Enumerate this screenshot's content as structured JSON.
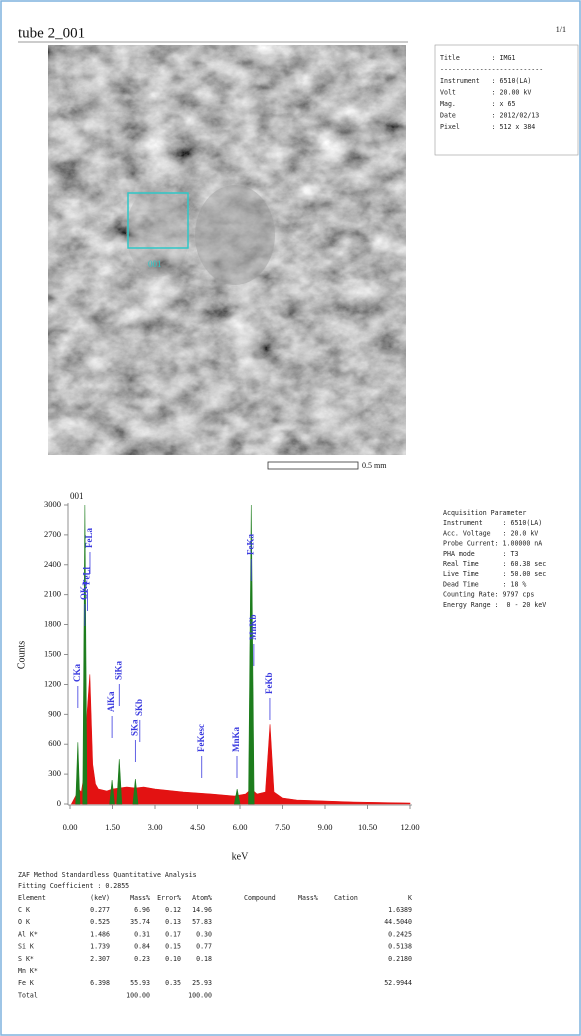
{
  "header": {
    "title": "tube 2_001",
    "page": "1/1"
  },
  "image": {
    "roi_label": "001",
    "scale_label": "0.5 mm"
  },
  "info": {
    "lines": [
      "Title        : IMG1",
      "--------------------------",
      "Instrument   : 6510(LA)",
      "Volt         : 20.00 kV",
      "Mag.         : x 65",
      "Date         : 2012/02/13",
      "Pixel        : 512 x 384"
    ]
  },
  "acquisition": {
    "lines": [
      "Acquisition Parameter",
      "Instrument     : 6510(LA)",
      "Acc. Voltage   : 20.0 kV",
      "Probe Current: 1.00000 nA",
      "PHA mode       : T3",
      "Real Time      : 60.38 sec",
      "Live Time      : 50.00 sec",
      "Dead Time      : 18 %",
      "Counting Rate: 9797 cps",
      "Energy Range :  0 - 20 keV"
    ]
  },
  "chart_data": {
    "type": "area",
    "title": "001",
    "x_label": "keV",
    "y_label": "Counts",
    "xlim": [
      0,
      12
    ],
    "ylim": [
      0,
      3000
    ],
    "xticks": [
      {
        "value": 0,
        "label": "0.00"
      },
      {
        "value": 1.5,
        "label": "1.50"
      },
      {
        "value": 3,
        "label": "3.00"
      },
      {
        "value": 4.5,
        "label": "4.50"
      },
      {
        "value": 6,
        "label": "6.00"
      },
      {
        "value": 7.5,
        "label": "7.50"
      },
      {
        "value": 9,
        "label": "9.00"
      },
      {
        "value": 10.5,
        "label": "10.50"
      },
      {
        "value": 12,
        "label": "12.00"
      }
    ],
    "yticks": [
      0,
      300,
      600,
      900,
      1200,
      1500,
      1800,
      2100,
      2400,
      2700,
      3000
    ],
    "series": [
      {
        "color": "#e31212",
        "x": [
          0.05,
          0.2,
          0.3,
          0.4,
          0.5,
          0.6,
          0.7,
          0.8,
          0.9,
          1.0,
          1.3,
          1.5,
          1.75,
          2.0,
          2.3,
          2.6,
          3.0,
          4.0,
          5.0,
          5.8,
          6.2,
          6.4,
          6.6,
          6.9,
          7.06,
          7.2,
          7.5,
          8,
          9,
          10,
          11,
          12
        ],
        "values": [
          0,
          80,
          150,
          120,
          300,
          900,
          1300,
          400,
          200,
          150,
          130,
          150,
          160,
          170,
          160,
          170,
          150,
          120,
          100,
          80,
          100,
          150,
          100,
          120,
          800,
          120,
          60,
          40,
          30,
          20,
          15,
          10
        ]
      },
      {
        "color": "#1d7d1d",
        "x": [
          0.2,
          0.277,
          0.35,
          null,
          0.45,
          0.525,
          0.6,
          null,
          1.4,
          1.486,
          1.57,
          null,
          1.65,
          1.739,
          1.83,
          null,
          2.22,
          2.307,
          2.4,
          null,
          5.8,
          5.9,
          6.0,
          null,
          6.3,
          6.398,
          6.5
        ],
        "values": [
          0,
          620,
          0,
          null,
          0,
          3000,
          0,
          null,
          0,
          240,
          0,
          null,
          0,
          450,
          0,
          null,
          0,
          250,
          0,
          null,
          0,
          150,
          0,
          null,
          0,
          3000,
          0
        ]
      }
    ],
    "peak_labels": [
      {
        "text": "CKa",
        "x": 0.277
      },
      {
        "text": "OKa",
        "x": 0.525
      },
      {
        "text": "FeLl",
        "x": 0.615
      },
      {
        "text": "FeLa",
        "x": 0.705
      },
      {
        "text": "AlKa",
        "x": 1.486
      },
      {
        "text": "SiKa",
        "x": 1.739
      },
      {
        "text": "SKa",
        "x": 2.307
      },
      {
        "text": "SKb",
        "x": 2.464
      },
      {
        "text": "FeKesc",
        "x": 4.65
      },
      {
        "text": "MnKa",
        "x": 5.894
      },
      {
        "text": "FeKa",
        "x": 6.398
      },
      {
        "text": "MnKb",
        "x": 6.49
      },
      {
        "text": "FeKb",
        "x": 7.057
      }
    ]
  },
  "analysis": {
    "title": "ZAF Method Standardless Quantitative Analysis",
    "fitting": "Fitting Coefficient : 0.2855",
    "header": {
      "element": "Element",
      "kev": "(keV)",
      "mass": "Mass%",
      "error": "Error%",
      "atom": "Atom%",
      "compound": "Compound",
      "mass2": "Mass%",
      "cation": "Cation",
      "k": "K"
    },
    "rows": [
      {
        "element": "C K",
        "kev": "0.277",
        "mass": "6.96",
        "error": "0.12",
        "atom": "14.96",
        "k": "1.6389"
      },
      {
        "element": "O K",
        "kev": "0.525",
        "mass": "35.74",
        "error": "0.13",
        "atom": "57.83",
        "k": "44.5040"
      },
      {
        "element": "Al K*",
        "kev": "1.486",
        "mass": "0.31",
        "error": "0.17",
        "atom": "0.30",
        "k": "0.2425"
      },
      {
        "element": "Si K",
        "kev": "1.739",
        "mass": "0.84",
        "error": "0.15",
        "atom": "0.77",
        "k": "0.5138"
      },
      {
        "element": "S K*",
        "kev": "2.307",
        "mass": "0.23",
        "error": "0.10",
        "atom": "0.18",
        "k": "0.2180"
      },
      {
        "element": "Mn K*"
      },
      {
        "element": "Fe K",
        "kev": "6.398",
        "mass": "55.93",
        "error": "0.35",
        "atom": "25.93",
        "k": "52.9944"
      },
      {
        "element": "Total",
        "mass": "100.00",
        "atom": "100.00"
      }
    ]
  }
}
